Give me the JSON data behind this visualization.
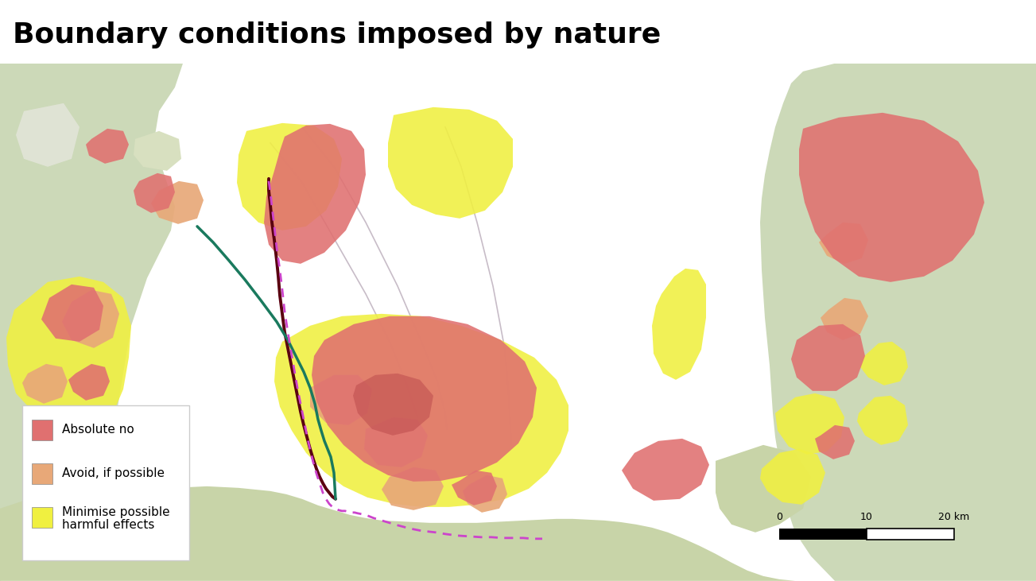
{
  "title": "Boundary conditions imposed by nature",
  "title_fontsize": 26,
  "title_fontweight": "bold",
  "sea_color": "#aed4e6",
  "land_color_left": "#ccd9b8",
  "land_color_right": "#ccd9b8",
  "land_color_bottom": "#c8d4a8",
  "legend_items": [
    {
      "label": "Absolute no",
      "color": "#e07070"
    },
    {
      "label": "Avoid, if possible",
      "color": "#e8a878"
    },
    {
      "label": "Minimise possible\nharmful effects",
      "color": "#f0f040"
    }
  ],
  "figsize": [
    13.03,
    7.31
  ],
  "dpi": 100,
  "yellow": "#f0f040",
  "orange": "#e8a878",
  "red": "#e07070",
  "yellow_alpha": 0.88,
  "orange_alpha": 0.92,
  "red_alpha": 0.88
}
